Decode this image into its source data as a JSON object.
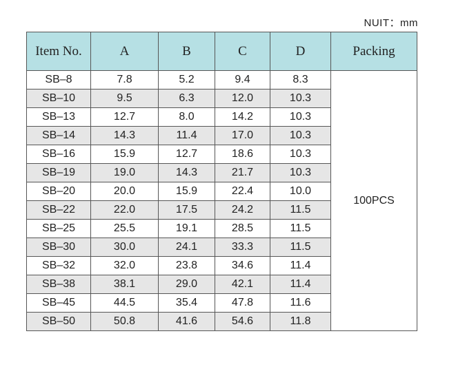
{
  "unit": "NUIT：mm",
  "table": {
    "header": [
      "Item No.",
      "A",
      "B",
      "C",
      "D",
      "Packing"
    ],
    "packing": "100PCS",
    "rows": [
      [
        "SB–8",
        "7.8",
        "5.2",
        "9.4",
        "8.3"
      ],
      [
        "SB–10",
        "9.5",
        "6.3",
        "12.0",
        "10.3"
      ],
      [
        "SB–13",
        "12.7",
        "8.0",
        "14.2",
        "10.3"
      ],
      [
        "SB–14",
        "14.3",
        "11.4",
        "17.0",
        "10.3"
      ],
      [
        "SB–16",
        "15.9",
        "12.7",
        "18.6",
        "10.3"
      ],
      [
        "SB–19",
        "19.0",
        "14.3",
        "21.7",
        "10.3"
      ],
      [
        "SB–20",
        "20.0",
        "15.9",
        "22.4",
        "10.0"
      ],
      [
        "SB–22",
        "22.0",
        "17.5",
        "24.2",
        "11.5"
      ],
      [
        "SB–25",
        "25.5",
        "19.1",
        "28.5",
        "11.5"
      ],
      [
        "SB–30",
        "30.0",
        "24.1",
        "33.3",
        "11.5"
      ],
      [
        "SB–32",
        "32.0",
        "23.8",
        "34.6",
        "11.4"
      ],
      [
        "SB–38",
        "38.1",
        "29.0",
        "42.1",
        "11.4"
      ],
      [
        "SB–45",
        "44.5",
        "35.4",
        "47.8",
        "11.6"
      ],
      [
        "SB–50",
        "50.8",
        "41.6",
        "54.6",
        "11.8"
      ]
    ]
  }
}
